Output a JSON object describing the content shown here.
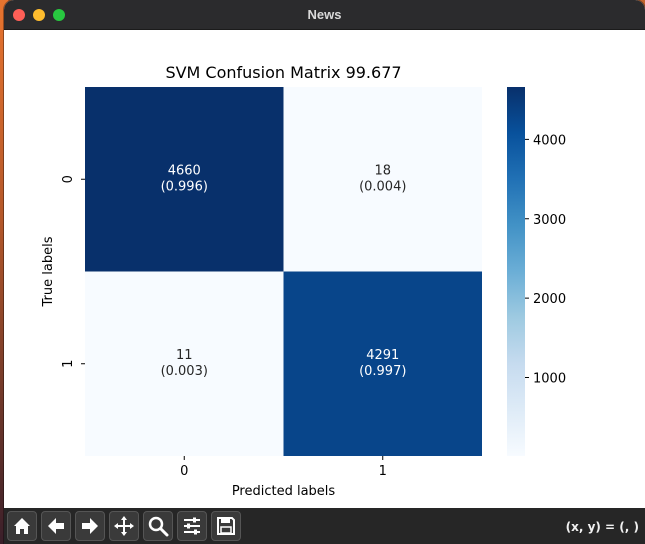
{
  "window": {
    "title": "News"
  },
  "toolbar": {
    "tools": [
      {
        "name": "home-icon"
      },
      {
        "name": "back-arrow-icon"
      },
      {
        "name": "forward-arrow-icon"
      },
      {
        "name": "pan-move-icon"
      },
      {
        "name": "zoom-magnifier-icon"
      },
      {
        "name": "configure-subplots-icon"
      },
      {
        "name": "save-icon"
      }
    ],
    "coords": "(x, y) = (, )"
  },
  "colors": {
    "cell_dark": "#08306b",
    "cell_mid": "#0b4d96",
    "cell_light": "#f7fbff",
    "text_on_dark": "#ffffff",
    "text_on_light": "#262626",
    "colorbar_scale": [
      "#f7fbff",
      "#deebf7",
      "#c6dbef",
      "#9ecae1",
      "#6baed6",
      "#4292c6",
      "#2171b5",
      "#08519c",
      "#08306b"
    ]
  },
  "chart_data": {
    "type": "heatmap",
    "title": "SVM Confusion Matrix 99.677",
    "xlabel": "Predicted labels",
    "ylabel": "True labels",
    "x_categories": [
      "0",
      "1"
    ],
    "y_categories": [
      "0",
      "1"
    ],
    "values": [
      [
        4660,
        18
      ],
      [
        11,
        4291
      ]
    ],
    "annotations": [
      [
        "(0.996)",
        "(0.004)"
      ],
      [
        "(0.003)",
        "(0.997)"
      ]
    ],
    "colorbar": {
      "range": [
        11,
        4660
      ],
      "ticks": [
        1000,
        2000,
        3000,
        4000
      ],
      "colormap": "Blues"
    }
  }
}
